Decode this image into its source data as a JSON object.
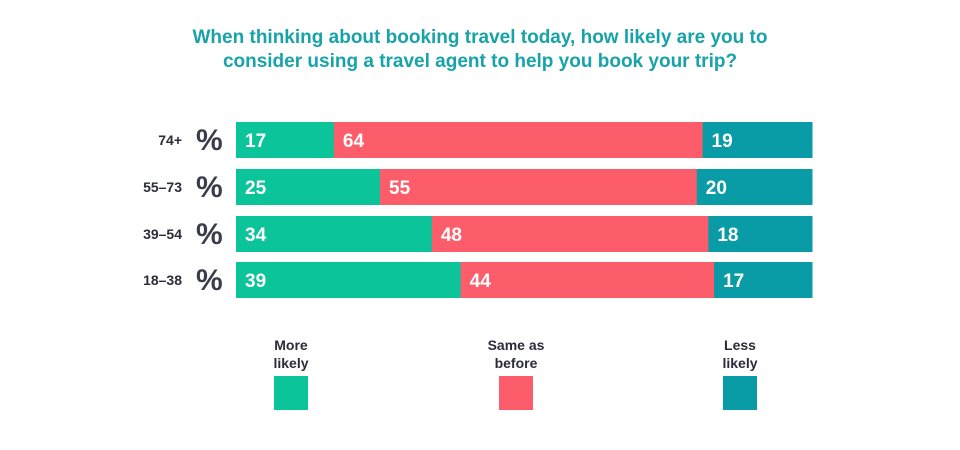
{
  "chart_data": {
    "type": "bar",
    "orientation": "horizontal",
    "stacked": true,
    "title": "When thinking about booking travel today, how likely are you to consider using a travel agent to help you book your trip?",
    "title_lines": [
      "When thinking about booking travel today, how likely are you to",
      "consider using a travel agent to help you book your trip?"
    ],
    "unit_symbol": "%",
    "categories": [
      "74+",
      "55–73",
      "39–54",
      "18–38"
    ],
    "series": [
      {
        "name": "More likely",
        "legend_label": "More\nlikely",
        "color": "#0cc49a",
        "values": [
          17,
          25,
          34,
          39
        ]
      },
      {
        "name": "Same as before",
        "legend_label": "Same as\nbefore",
        "color": "#fd5d6b",
        "values": [
          64,
          55,
          48,
          44
        ]
      },
      {
        "name": "Less likely",
        "legend_label": "Less\nlikely",
        "color": "#0a9ca6",
        "values": [
          19,
          20,
          18,
          17
        ]
      }
    ],
    "grid": false,
    "legend_position": "bottom"
  }
}
